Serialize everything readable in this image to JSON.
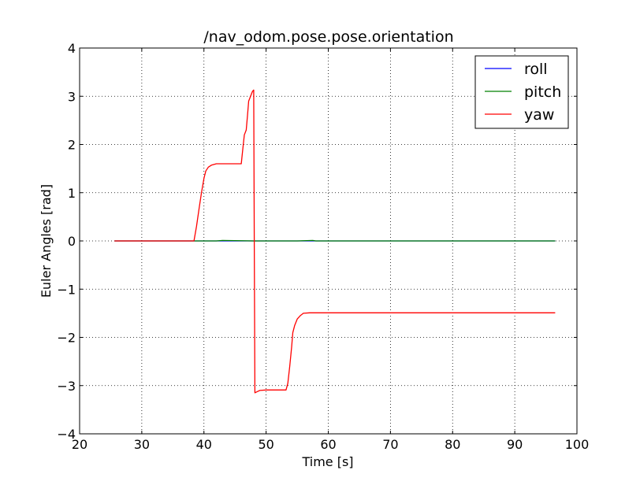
{
  "chart_data": {
    "type": "line",
    "title": "/nav_odom.pose.pose.orientation",
    "xlabel": "Time [s]",
    "ylabel": "Euler Angles [rad]",
    "xlim": [
      20,
      100
    ],
    "ylim": [
      -4,
      4
    ],
    "xticks": [
      20,
      30,
      40,
      50,
      60,
      70,
      80,
      90,
      100
    ],
    "yticks": [
      -4,
      -3,
      -2,
      -1,
      0,
      1,
      2,
      3,
      4
    ],
    "xtick_labels": [
      "20",
      "30",
      "40",
      "50",
      "60",
      "70",
      "80",
      "90",
      "100"
    ],
    "ytick_labels": [
      "−4",
      "−3",
      "−2",
      "−1",
      "0",
      "1",
      "2",
      "3",
      "4"
    ],
    "grid": true,
    "legend_position": "top-right",
    "series": [
      {
        "name": "roll",
        "color": "#0000ff",
        "x": [
          25.6,
          40,
          48,
          55,
          60,
          80,
          96.5
        ],
        "y": [
          0.0,
          0.0,
          0.0,
          0.0,
          0.0,
          0.0,
          0.0
        ]
      },
      {
        "name": "pitch",
        "color": "#008000",
        "x": [
          25.6,
          38,
          42,
          43,
          48,
          55,
          57.5,
          58,
          70,
          96.5
        ],
        "y": [
          0.0,
          0.0,
          0.0,
          0.01,
          0.0,
          0.0,
          0.01,
          0.0,
          0.0,
          0.0
        ]
      },
      {
        "name": "yaw",
        "color": "#ff0000",
        "x": [
          25.6,
          35,
          38.4,
          38.8,
          39.2,
          39.6,
          40.0,
          40.3,
          40.7,
          41.2,
          42.0,
          44.0,
          46.0,
          46.2,
          46.5,
          46.8,
          47.0,
          47.2,
          47.5,
          47.8,
          48.0,
          48.1,
          48.2,
          48.5,
          49.0,
          50.0,
          52.0,
          53.2,
          53.5,
          53.8,
          54.1,
          54.3,
          54.6,
          55.0,
          55.5,
          56.0,
          57.0,
          60.0,
          70.0,
          96.5
        ],
        "y": [
          0.0,
          0.0,
          0.0,
          0.3,
          0.65,
          1.0,
          1.3,
          1.45,
          1.53,
          1.57,
          1.6,
          1.6,
          1.6,
          1.85,
          2.2,
          2.3,
          2.6,
          2.9,
          3.0,
          3.1,
          3.13,
          0.0,
          -3.15,
          -3.13,
          -3.1,
          -3.09,
          -3.09,
          -3.09,
          -2.95,
          -2.6,
          -2.2,
          -1.9,
          -1.75,
          -1.62,
          -1.55,
          -1.5,
          -1.49,
          -1.49,
          -1.49,
          -1.49
        ]
      }
    ]
  }
}
